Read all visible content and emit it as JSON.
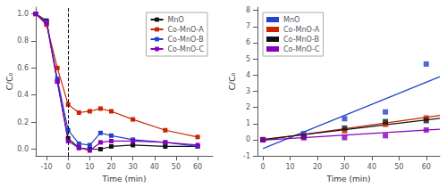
{
  "chart_data": [
    {
      "type": "line",
      "xlabel": "Time (min)",
      "ylabel": "C/C₀",
      "xlim": [
        -15,
        67
      ],
      "ylim": [
        -0.05,
        1.05
      ],
      "xticks": [
        -10,
        0,
        10,
        20,
        30,
        40,
        50,
        60
      ],
      "yticks": [
        {
          "value": 0.0,
          "label": "0.0"
        },
        0.2,
        0.4,
        0.6,
        0.8,
        {
          "value": 1.0,
          "label": "1.0"
        }
      ],
      "grid": false,
      "legend": "upper right",
      "marker": "square",
      "reference_lines": [
        {
          "x": 0,
          "color": "#000000",
          "line_style": "dashed"
        }
      ],
      "series": [
        {
          "name": "MnO",
          "color": "#111111",
          "x": [
            -15,
            -10,
            -5,
            0,
            5,
            10,
            15,
            20,
            30,
            45,
            60
          ],
          "values": [
            1.0,
            0.95,
            0.5,
            0.08,
            0.01,
            0.0,
            0.0,
            0.02,
            0.03,
            0.02,
            0.02
          ]
        },
        {
          "name": "Co-MnO-A",
          "color": "#cc2200",
          "x": [
            -15,
            -10,
            -5,
            0,
            5,
            10,
            15,
            20,
            30,
            45,
            60
          ],
          "values": [
            1.0,
            0.92,
            0.6,
            0.33,
            0.27,
            0.28,
            0.3,
            0.28,
            0.22,
            0.14,
            0.09
          ]
        },
        {
          "name": "Co-MnO-B",
          "color": "#2244cc",
          "x": [
            -15,
            -10,
            -5,
            0,
            5,
            10,
            15,
            20,
            30,
            45,
            60
          ],
          "values": [
            1.0,
            0.94,
            0.52,
            0.14,
            0.04,
            0.03,
            0.12,
            0.1,
            0.07,
            0.05,
            0.02
          ]
        },
        {
          "name": "Co-MnO-C",
          "color": "#8800bb",
          "x": [
            -15,
            -10,
            -5,
            0,
            5,
            10,
            15,
            20,
            30,
            45,
            60
          ],
          "values": [
            1.0,
            0.93,
            0.5,
            0.06,
            0.01,
            -0.01,
            0.05,
            0.06,
            0.06,
            0.05,
            0.03
          ]
        }
      ]
    },
    {
      "type": "scatter",
      "xlabel": "Time (min)",
      "ylabel": "C/C₀",
      "xlim": [
        -2,
        65
      ],
      "ylim": [
        -1.0,
        8.2
      ],
      "xticks": [
        0,
        10,
        20,
        30,
        40,
        50,
        60
      ],
      "yticks": [
        -1,
        0,
        1,
        2,
        3,
        4,
        5,
        6,
        7,
        8
      ],
      "grid": false,
      "legend": "upper left",
      "marker": "square",
      "series": [
        {
          "type": "line",
          "marker": "none",
          "color": "#2244cc",
          "x": [
            0,
            65
          ],
          "values": [
            -0.55,
            3.9
          ]
        },
        {
          "type": "line",
          "marker": "none",
          "color": "#cc2200",
          "x": [
            0,
            65
          ],
          "values": [
            -0.02,
            1.5
          ]
        },
        {
          "type": "line",
          "marker": "none",
          "color": "#111111",
          "x": [
            0,
            65
          ],
          "values": [
            0.02,
            1.32
          ]
        },
        {
          "type": "line",
          "marker": "none",
          "color": "#8800bb",
          "x": [
            0,
            65
          ],
          "values": [
            -0.02,
            0.65
          ]
        },
        {
          "type": "scatter",
          "name": "MnO",
          "color": "#2244cc",
          "x": [
            0,
            15,
            30,
            45,
            60
          ],
          "values": [
            0.0,
            0.38,
            1.3,
            1.72,
            4.68
          ]
        },
        {
          "type": "scatter",
          "name": "Co-MnO-A",
          "color": "#cc2200",
          "x": [
            0,
            15,
            30,
            45,
            60
          ],
          "values": [
            0.0,
            0.18,
            0.55,
            0.95,
            1.35
          ]
        },
        {
          "type": "scatter",
          "name": "Co-MnO-B",
          "color": "#111111",
          "x": [
            0,
            15,
            30,
            45,
            60
          ],
          "values": [
            0.0,
            0.2,
            0.72,
            1.12,
            1.18
          ]
        },
        {
          "type": "scatter",
          "name": "Co-MnO-C",
          "color": "#8800bb",
          "x": [
            0,
            15,
            30,
            45,
            60
          ],
          "values": [
            0.0,
            0.12,
            0.13,
            0.25,
            0.6
          ]
        }
      ]
    }
  ]
}
